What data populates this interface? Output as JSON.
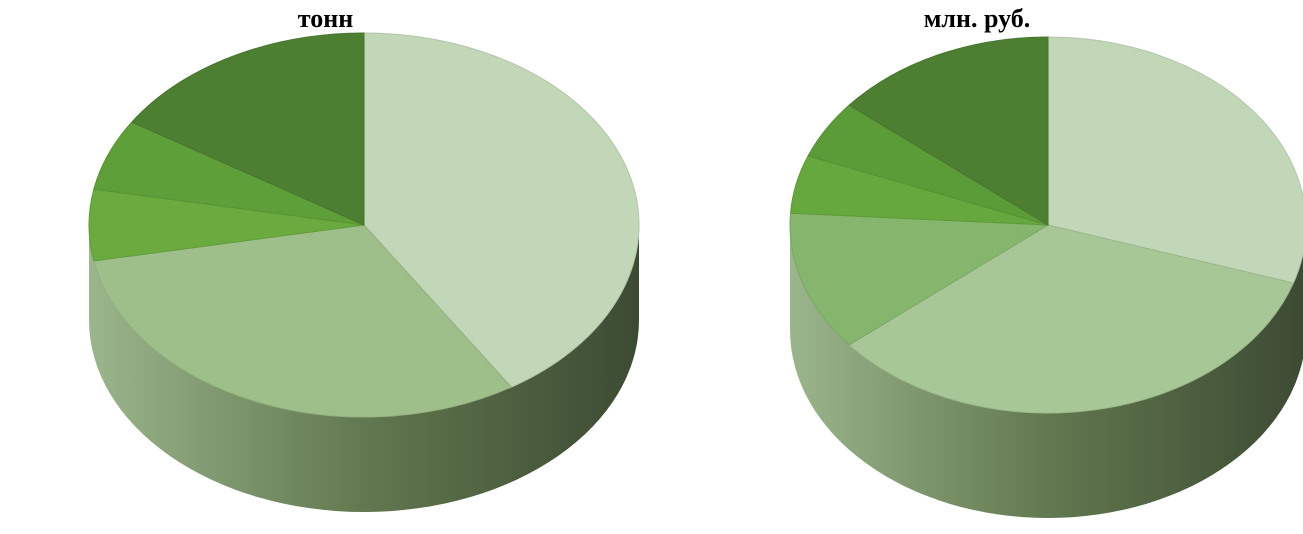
{
  "chart_data": [
    {
      "type": "pie",
      "title": "тонн",
      "style": "3d",
      "series": [
        {
          "values": [
            41,
            31,
            6,
            6,
            16
          ]
        }
      ],
      "colors": [
        "#c2d6b8",
        "#9fbf8a",
        "#6aaa3f",
        "#5f9f3a",
        "#4d7f32"
      ]
    },
    {
      "type": "pie",
      "title": "млн. руб.",
      "style": "3d",
      "series": [
        {
          "values": [
            30,
            34,
            12,
            5,
            5,
            14
          ]
        }
      ],
      "colors": [
        "#c2d6b8",
        "#a8c796",
        "#86b66e",
        "#66a73e",
        "#5c9c38",
        "#4d7f32"
      ]
    }
  ]
}
